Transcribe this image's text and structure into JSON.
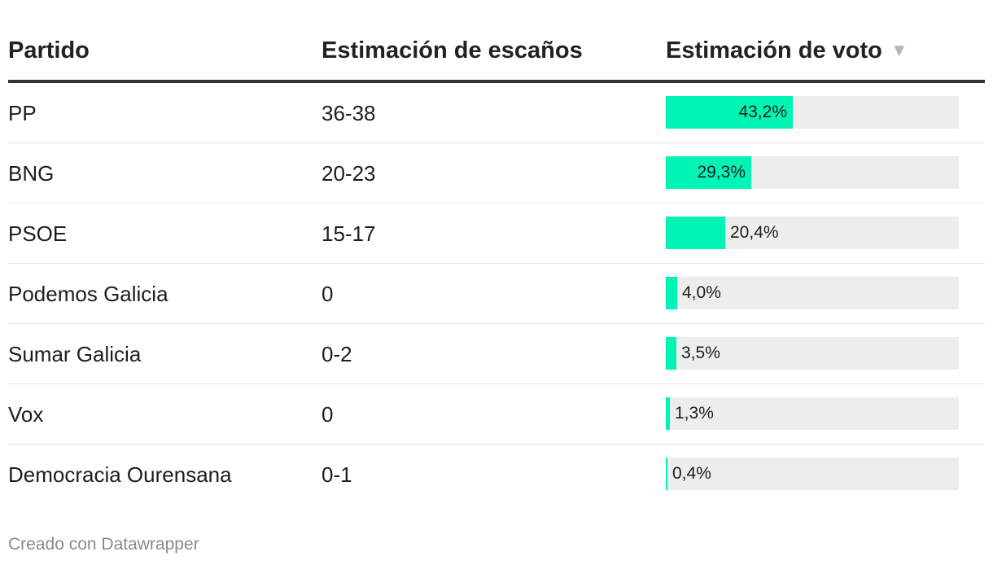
{
  "table": {
    "headers": {
      "party": "Partido",
      "seats": "Estimación de escaños",
      "vote": "Estimación de voto"
    },
    "sort_icon": "sort-descending-icon",
    "rows": [
      {
        "party": "PP",
        "seats": "36-38",
        "vote": 43.2,
        "vote_label": "43,2%"
      },
      {
        "party": "BNG",
        "seats": "20-23",
        "vote": 29.3,
        "vote_label": "29,3%"
      },
      {
        "party": "PSOE",
        "seats": "15-17",
        "vote": 20.4,
        "vote_label": "20,4%"
      },
      {
        "party": "Podemos Galicia",
        "seats": "0",
        "vote": 4.0,
        "vote_label": "4,0%"
      },
      {
        "party": "Sumar Galicia",
        "seats": "0-2",
        "vote": 3.5,
        "vote_label": "3,5%"
      },
      {
        "party": "Vox",
        "seats": "0",
        "vote": 1.3,
        "vote_label": "1,3%"
      },
      {
        "party": "Democracia Ourensana",
        "seats": "0-1",
        "vote": 0.4,
        "vote_label": "0,4%"
      }
    ]
  },
  "chart_data": {
    "type": "bar",
    "categories": [
      "PP",
      "BNG",
      "PSOE",
      "Podemos Galicia",
      "Sumar Galicia",
      "Vox",
      "Democracia Ourensana"
    ],
    "values": [
      43.2,
      29.3,
      20.4,
      4.0,
      3.5,
      1.3,
      0.4
    ],
    "seat_ranges": [
      "36-38",
      "20-23",
      "15-17",
      "0",
      "0-2",
      "0",
      "0-1"
    ],
    "ylabel": "Estimación de voto",
    "xlim": [
      0,
      100
    ],
    "bar_color": "#00f5b4",
    "track_color": "#ededed"
  },
  "footer": {
    "credit": "Creado con Datawrapper"
  }
}
